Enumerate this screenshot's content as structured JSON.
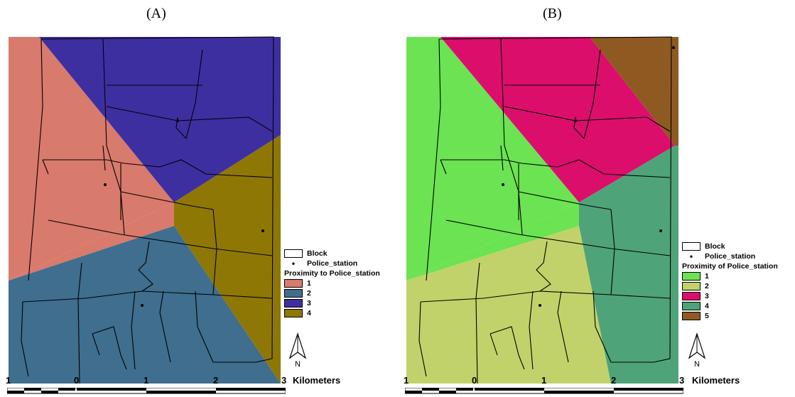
{
  "panels": [
    {
      "id": "A",
      "title": "(A)",
      "legend": {
        "block_label": "Block",
        "station_label": "Police_station",
        "title": "Proximity to Police_station",
        "classes": [
          {
            "label": "1",
            "color": "#D87A6C"
          },
          {
            "label": "2",
            "color": "#3F6E8E"
          },
          {
            "label": "3",
            "color": "#3E2FA0"
          },
          {
            "label": "4",
            "color": "#8E7705"
          }
        ]
      },
      "scale": {
        "ticks": [
          "1",
          "0",
          "1",
          "2",
          "3"
        ],
        "unit": "Kilometers"
      }
    },
    {
      "id": "B",
      "title": "(B)",
      "legend": {
        "block_label": "Block",
        "station_label": "Police_station",
        "title": "Proximity of Police_station",
        "classes": [
          {
            "label": "1",
            "color": "#6BE352"
          },
          {
            "label": "2",
            "color": "#C2D26A"
          },
          {
            "label": "3",
            "color": "#DC0E6C"
          },
          {
            "label": "4",
            "color": "#4FA378"
          },
          {
            "label": "5",
            "color": "#8E5A22"
          }
        ]
      },
      "scale": {
        "ticks": [
          "1",
          "0",
          "1",
          "2",
          "3"
        ],
        "unit": "Kilometers"
      }
    }
  ],
  "north_arrow_label": "N"
}
